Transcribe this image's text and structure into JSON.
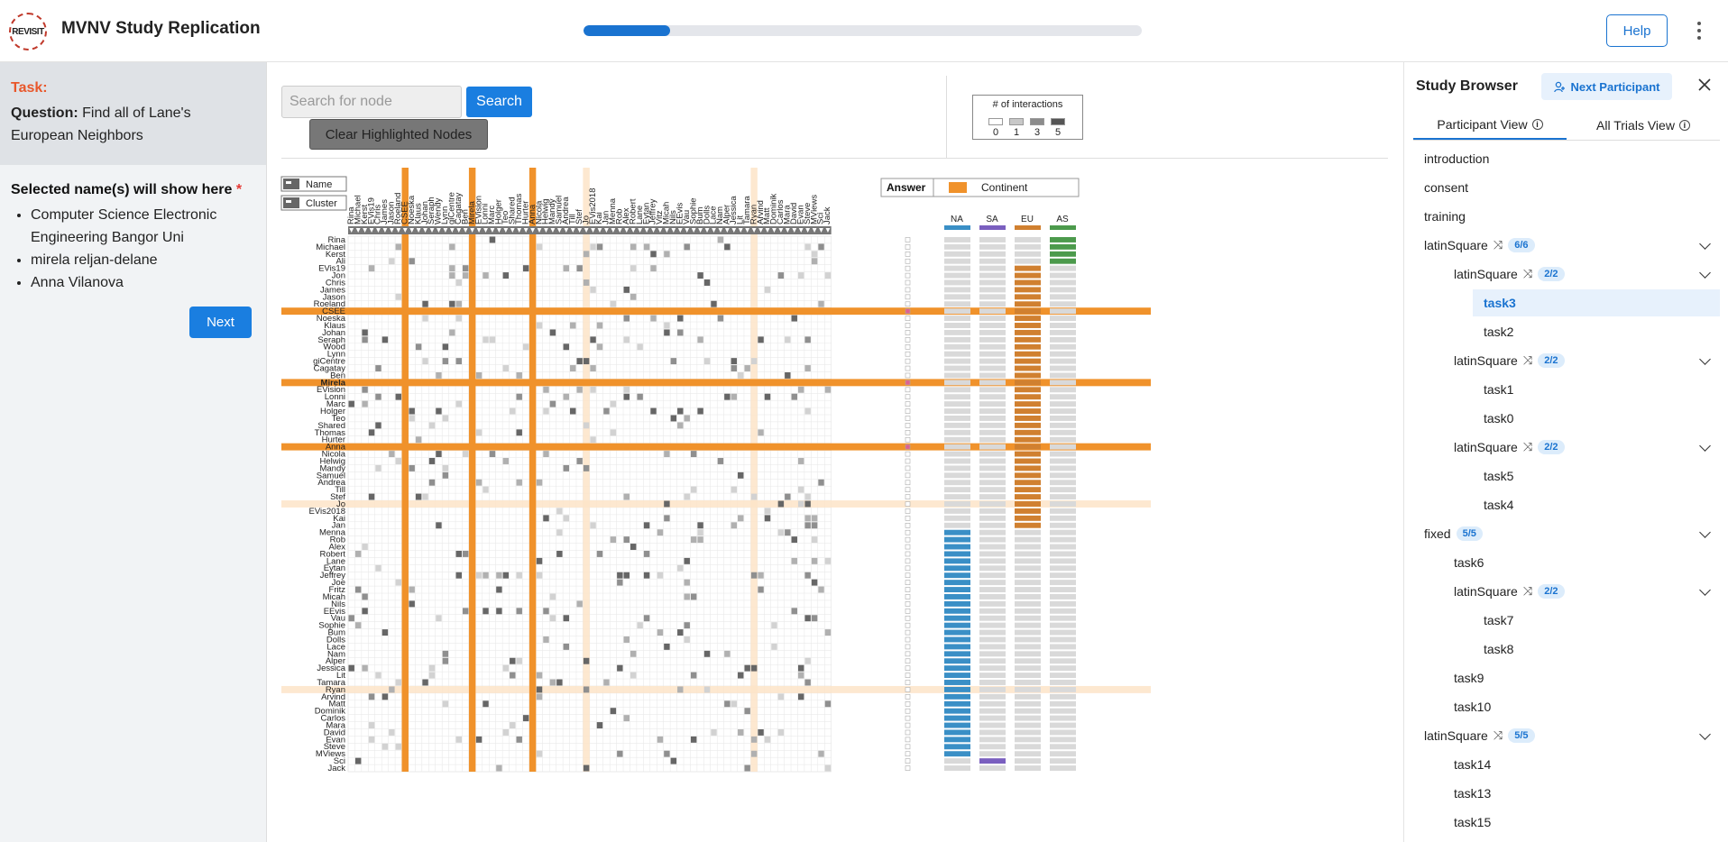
{
  "app": {
    "title": "MVNV Study Replication",
    "logo_text": "REVISIT",
    "progress_fraction": 0.155,
    "help_label": "Help",
    "accent_color": "#1a73d0"
  },
  "task": {
    "label": "Task:",
    "question_label": "Question:",
    "question_text": "Find all of Lane's European Neighbors",
    "selected_title": "Selected name(s) will show here",
    "required_marker": "*",
    "selected_names": [
      "Computer Science Electronic Engineering Bangor Uni",
      "mirela reljan-delane",
      "Anna Vilanova"
    ],
    "next_label": "Next"
  },
  "toolbar": {
    "search_placeholder": "Search for node",
    "search_label": "Search",
    "clear_label": "Clear Highlighted Nodes"
  },
  "legend": {
    "title": "# of interactions",
    "values": [
      "0",
      "1",
      "3",
      "5"
    ],
    "swatches": [
      "#ffffff",
      "#c8c8c8",
      "#8c8c8c",
      "#555555"
    ]
  },
  "matrix": {
    "sort_name_label": "Name",
    "sort_cluster_label": "Cluster",
    "answer_label": "Answer",
    "continent_label": "Continent",
    "continents": [
      {
        "code": "NA",
        "color": "#3a8fc6"
      },
      {
        "code": "SA",
        "color": "#7a5fbf"
      },
      {
        "code": "EU",
        "color": "#d08030"
      },
      {
        "code": "AS",
        "color": "#4c9a4c"
      }
    ],
    "highlight_color": "#f0922b",
    "soft_highlight_color": "#fde4c8",
    "bold_row": "Mirela",
    "columns": [
      "Rina",
      "Michael",
      "Kerst",
      "EVis19",
      "Chris",
      "James",
      "Jason",
      "Roeland",
      "CSEE",
      "Noeska",
      "Klaus",
      "Johan",
      "Seraph",
      "Wendy",
      "Lynn",
      "giCentre",
      "Cagatay",
      "Ben",
      "Mirela",
      "EVision",
      "Lonni",
      "Marc",
      "Holger",
      "Teo",
      "Shared",
      "Thomas",
      "Hurter",
      "Anna",
      "Nicola",
      "Helwig",
      "Mandy",
      "Samuel",
      "Andrea",
      "Till",
      "Stef",
      "Jo",
      "EVis2018",
      "Kai",
      "Jan",
      "Menna",
      "Rob",
      "Alex",
      "Robert",
      "Lane",
      "Eytan",
      "Jeffrey",
      "Vitz",
      "Micah",
      "Nils",
      "EEvis",
      "Vau",
      "Sophie",
      "Bum",
      "Dolls",
      "Lace",
      "Nam",
      "Alper",
      "Jessica",
      "Lit",
      "Tamara",
      "Ryan",
      "Arvind",
      "Matt",
      "Dominik",
      "Carlos",
      "Mara",
      "David",
      "Evan",
      "Steve",
      "MViews",
      "Sci",
      "Jack"
    ],
    "rows": [
      "Rina",
      "Michael",
      "Kerst",
      "Ali",
      "EVis19",
      "Jon",
      "Chris",
      "James",
      "Jason",
      "Roeland",
      "CSEE",
      "Noeska",
      "Klaus",
      "Johan",
      "Seraph",
      "Wood",
      "Lynn",
      "giCentre",
      "Cagatay",
      "Ben",
      "Mirela",
      "EVision",
      "Lonni",
      "Marc",
      "Holger",
      "Teo",
      "Shared",
      "Thomas",
      "Hurter",
      "Anna",
      "Nicola",
      "Helwig",
      "Mandy",
      "Samuel",
      "Andrea",
      "Till",
      "Stef",
      "Jo",
      "EVis2018",
      "Kai",
      "Jan",
      "Menna",
      "Rob",
      "Alex",
      "Robert",
      "Lane",
      "Eytan",
      "Jeffrey",
      "Joe",
      "Fritz",
      "Micah",
      "Nils",
      "EEvis",
      "Vau",
      "Sophie",
      "Bum",
      "Dolls",
      "Lace",
      "Nam",
      "Alper",
      "Jessica",
      "Lit",
      "Tamara",
      "Ryan",
      "Arvind",
      "Matt",
      "Dominik",
      "Carlos",
      "Mara",
      "David",
      "Evan",
      "Steve",
      "MViews",
      "Sci",
      "Jack"
    ],
    "highlighted_rows": [
      "CSEE",
      "Mirela",
      "Anna"
    ],
    "highlighted_columns": [
      "CSEE",
      "Mirela",
      "Anna"
    ],
    "soft_rows": [
      "Jo",
      "Ryan"
    ],
    "soft_columns": [
      "Jo",
      "Ryan"
    ],
    "row_continents": [
      "AS",
      "AS",
      "AS",
      "AS",
      "EU",
      "EU",
      "EU",
      "EU",
      "EU",
      "EU",
      "EU",
      "EU",
      "EU",
      "EU",
      "EU",
      "EU",
      "EU",
      "EU",
      "EU",
      "EU",
      "EU",
      "EU",
      "EU",
      "EU",
      "EU",
      "EU",
      "EU",
      "EU",
      "EU",
      "EU",
      "EU",
      "EU",
      "EU",
      "EU",
      "EU",
      "EU",
      "EU",
      "EU",
      "EU",
      "EU",
      "EU",
      "NA",
      "NA",
      "NA",
      "NA",
      "NA",
      "NA",
      "NA",
      "NA",
      "NA",
      "NA",
      "NA",
      "NA",
      "NA",
      "NA",
      "NA",
      "NA",
      "NA",
      "NA",
      "NA",
      "NA",
      "NA",
      "NA",
      "NA",
      "NA",
      "NA",
      "NA",
      "NA",
      "NA",
      "NA",
      "NA",
      "NA",
      "NA",
      "SA"
    ]
  },
  "study_browser": {
    "title": "Study Browser",
    "next_participant_label": "Next Participant",
    "tab_participant": "Participant View",
    "tab_trials": "All Trials View",
    "items": [
      {
        "label": "introduction",
        "level": 0
      },
      {
        "label": "consent",
        "level": 0
      },
      {
        "label": "training",
        "level": 0
      },
      {
        "label": "latinSquare",
        "level": 0,
        "badge": "6/6",
        "shuffle": true,
        "chevron": true
      },
      {
        "label": "latinSquare",
        "level": 1,
        "badge": "2/2",
        "shuffle": true,
        "chevron": true
      },
      {
        "label": "task3",
        "level": 2,
        "selected": true
      },
      {
        "label": "task2",
        "level": 2
      },
      {
        "label": "latinSquare",
        "level": 1,
        "badge": "2/2",
        "shuffle": true,
        "chevron": true
      },
      {
        "label": "task1",
        "level": 2
      },
      {
        "label": "task0",
        "level": 2
      },
      {
        "label": "latinSquare",
        "level": 1,
        "badge": "2/2",
        "shuffle": true,
        "chevron": true
      },
      {
        "label": "task5",
        "level": 2
      },
      {
        "label": "task4",
        "level": 2
      },
      {
        "label": "fixed",
        "level": 0,
        "badge": "5/5",
        "chevron": true
      },
      {
        "label": "task6",
        "level": 1
      },
      {
        "label": "latinSquare",
        "level": 1,
        "badge": "2/2",
        "shuffle": true,
        "chevron": true
      },
      {
        "label": "task7",
        "level": 2
      },
      {
        "label": "task8",
        "level": 2
      },
      {
        "label": "task9",
        "level": 1
      },
      {
        "label": "task10",
        "level": 1
      },
      {
        "label": "latinSquare",
        "level": 0,
        "badge": "5/5",
        "shuffle": true,
        "chevron": true
      },
      {
        "label": "task14",
        "level": 1
      },
      {
        "label": "task13",
        "level": 1
      },
      {
        "label": "task15",
        "level": 1
      }
    ]
  }
}
